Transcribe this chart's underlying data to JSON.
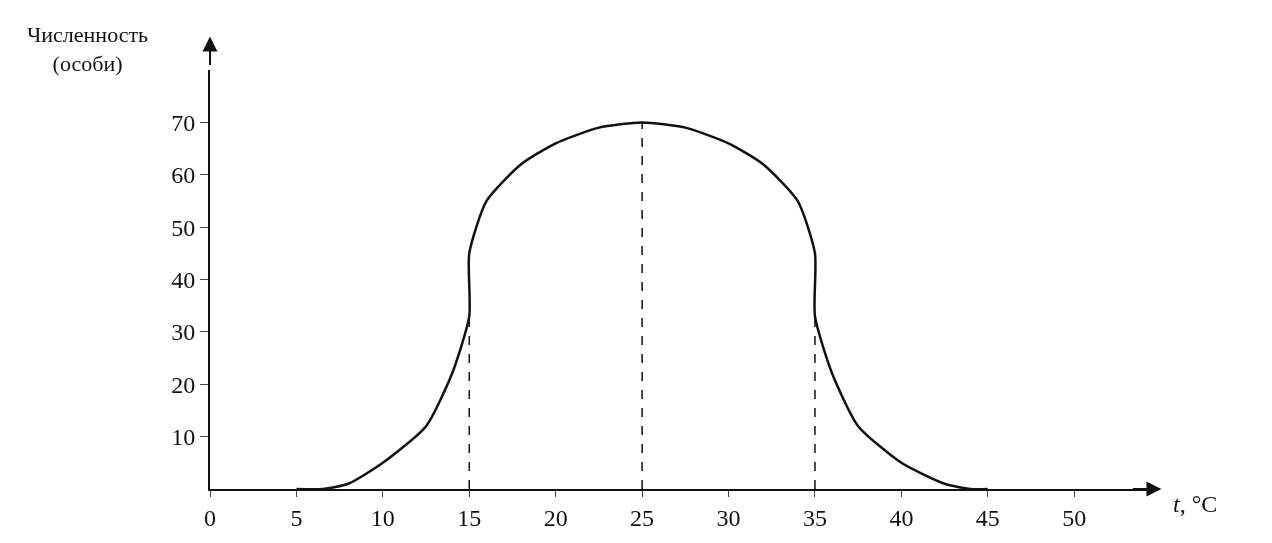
{
  "chart_data": {
    "type": "line",
    "xlabel": "t, °C",
    "ylabel": "Численность\n(особи)",
    "xlim": [
      0,
      54.5
    ],
    "ylim": [
      0,
      80
    ],
    "xticks": [
      0,
      5,
      10,
      15,
      20,
      25,
      30,
      35,
      40,
      45,
      50
    ],
    "yticks": [
      10,
      20,
      30,
      40,
      50,
      60,
      70
    ],
    "marker": "none",
    "series": [
      {
        "color": "#111111",
        "line_style": "solid",
        "x": [
          5,
          6.5,
          8,
          10,
          12.5,
          14,
          15,
          15,
          16,
          18,
          20,
          22.5,
          25,
          27.5,
          30,
          32,
          34,
          35,
          35,
          36,
          37.5,
          40,
          42.5,
          44,
          45
        ],
        "values": [
          0,
          0,
          1,
          5,
          12,
          22,
          33,
          45,
          55,
          62,
          66,
          69,
          70,
          69,
          66,
          62,
          55,
          45,
          33,
          22,
          12,
          5,
          1,
          0,
          0
        ]
      }
    ],
    "ref_lines": [
      {
        "axis": "x",
        "value": 15,
        "color": "#111111",
        "line_style": "dashed"
      },
      {
        "axis": "x",
        "value": 25,
        "color": "#111111",
        "line_style": "dashed"
      },
      {
        "axis": "x",
        "value": 35,
        "color": "#111111",
        "line_style": "dashed"
      }
    ]
  }
}
